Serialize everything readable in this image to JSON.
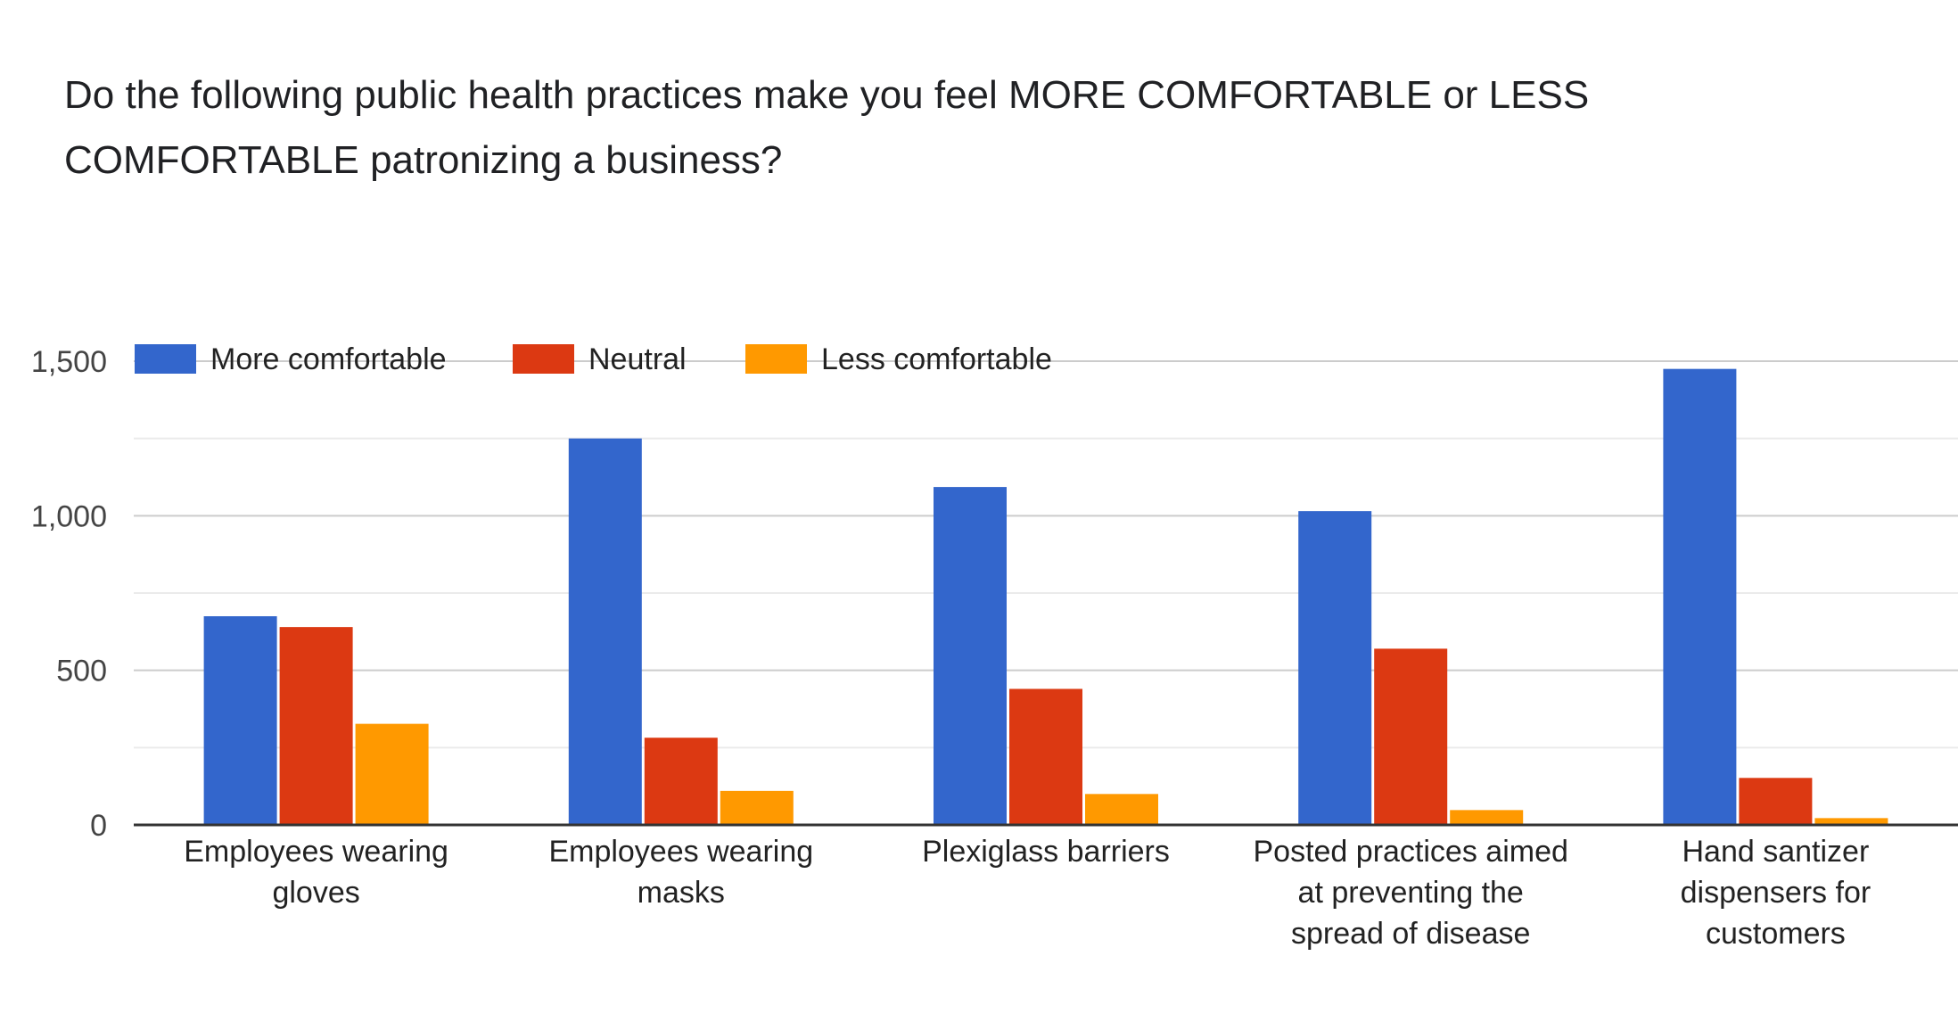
{
  "chart_data": {
    "type": "bar",
    "title": "Do the following public health practices make you feel MORE COMFORTABLE or LESS COMFORTABLE patronizing a business?",
    "categories": [
      [
        "Employees wearing",
        "gloves"
      ],
      [
        "Employees wearing",
        "masks"
      ],
      [
        "Plexiglass barriers"
      ],
      [
        "Posted practices aimed",
        "at preventing the",
        "spread of disease"
      ],
      [
        "Hand santizer",
        "dispensers for",
        "customers"
      ]
    ],
    "series": [
      {
        "name": "More comfortable",
        "color": "#3366cc",
        "values": [
          675,
          1250,
          1093,
          1015,
          1475
        ]
      },
      {
        "name": "Neutral",
        "color": "#dc3912",
        "values": [
          640,
          282,
          440,
          570,
          152
        ]
      },
      {
        "name": "Less comfortable",
        "color": "#ff9900",
        "values": [
          327,
          110,
          100,
          48,
          22
        ]
      }
    ],
    "y_ticks": [
      0,
      500,
      1000,
      1500
    ],
    "y_tick_labels": [
      "0",
      "500",
      "1,000",
      "1,500"
    ],
    "ylim": [
      0,
      1500
    ],
    "legend_position": "top-left",
    "grid": true
  }
}
